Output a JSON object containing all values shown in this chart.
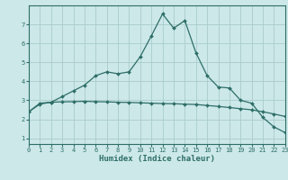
{
  "xlabel": "Humidex (Indice chaleur)",
  "bg_color": "#cce8e8",
  "grid_color": "#aacccc",
  "line_color": "#2e6e68",
  "x_line1": [
    0,
    1,
    2,
    3,
    4,
    5,
    6,
    7,
    8,
    9,
    10,
    11,
    12,
    13,
    14,
    15,
    16,
    17,
    18,
    19,
    20,
    21,
    22,
    23
  ],
  "y_line1": [
    2.4,
    2.8,
    2.9,
    3.2,
    3.5,
    3.8,
    4.3,
    4.5,
    4.4,
    4.5,
    5.3,
    6.4,
    7.55,
    6.8,
    7.2,
    5.5,
    4.3,
    3.7,
    3.65,
    3.0,
    2.85,
    2.1,
    1.6,
    1.3
  ],
  "x_line2": [
    0,
    1,
    2,
    3,
    4,
    5,
    6,
    7,
    8,
    9,
    10,
    11,
    12,
    13,
    14,
    15,
    16,
    17,
    18,
    19,
    20,
    21,
    22,
    23
  ],
  "y_line2": [
    2.4,
    2.85,
    2.9,
    2.92,
    2.93,
    2.95,
    2.93,
    2.92,
    2.9,
    2.89,
    2.87,
    2.85,
    2.83,
    2.82,
    2.8,
    2.78,
    2.73,
    2.68,
    2.62,
    2.56,
    2.5,
    2.4,
    2.28,
    2.15
  ],
  "xlim": [
    0,
    23
  ],
  "ylim": [
    0.7,
    8.0
  ],
  "yticks": [
    1,
    2,
    3,
    4,
    5,
    6,
    7
  ],
  "xticks": [
    0,
    1,
    2,
    3,
    4,
    5,
    6,
    7,
    8,
    9,
    10,
    11,
    12,
    13,
    14,
    15,
    16,
    17,
    18,
    19,
    20,
    21,
    22,
    23
  ],
  "tick_fontsize": 5.0,
  "xlabel_fontsize": 6.5,
  "marker": "D",
  "marker_size": 2.0,
  "linewidth": 0.9
}
